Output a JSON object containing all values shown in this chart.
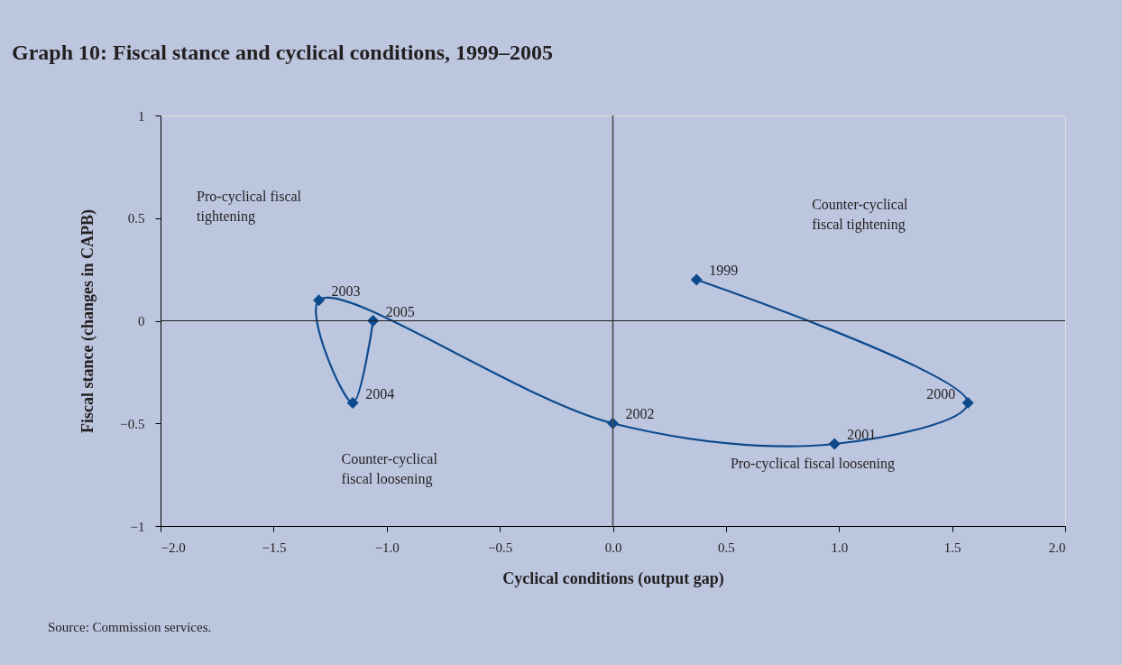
{
  "chart_data": {
    "type": "line",
    "title": "Graph 10:  Fiscal stance and cyclical conditions, 1999–2005",
    "xlabel": "Cyclical conditions (output gap)",
    "ylabel": "Fiscal stance (changes in CAPB)",
    "series": [
      {
        "x": [
          0.37,
          1.57,
          0.98,
          0.0,
          -1.3,
          -1.15,
          -1.06
        ],
        "values": [
          0.2,
          -0.4,
          -0.6,
          -0.5,
          0.1,
          -0.4,
          0.0
        ],
        "color": "#0d4a8c"
      }
    ],
    "marker": "diamond",
    "line_style": "solid",
    "xlim": [
      -2,
      2
    ],
    "ylim": [
      -1,
      1
    ],
    "xticks": [
      {
        "value": -2,
        "label": "−2.0"
      },
      {
        "value": -1.5,
        "label": "−1.5"
      },
      {
        "value": -1,
        "label": "−1.0"
      },
      {
        "value": -0.5,
        "label": "−0.5"
      },
      {
        "value": 0,
        "label": "0.0"
      },
      0.5,
      {
        "value": 1,
        "label": "1.0"
      },
      1.5,
      {
        "value": 2,
        "label": "2.0"
      }
    ],
    "yticks": [
      {
        "value": -1,
        "label": "−1"
      },
      {
        "value": -0.5,
        "label": "−0.5"
      },
      0,
      0.5,
      1
    ],
    "ref_lines": [
      {
        "axis": "x",
        "value": 0,
        "color": "#4a4a4f"
      },
      {
        "axis": "y",
        "value": 0,
        "color": "#231f20"
      }
    ],
    "annotations": [
      "Pro-cyclical fiscal\ntightening",
      "Counter-cyclical\nfiscal tightening",
      "Counter-cyclical\nfiscal loosening",
      "Pro-cyclical fiscal loosening",
      "Source: Commission services.",
      {
        "text": "1999",
        "x": 0.37,
        "y": 0.2
      },
      {
        "text": "2000",
        "x": 1.57,
        "y": -0.4
      },
      {
        "text": "2001",
        "x": 0.98,
        "y": -0.6
      },
      {
        "text": "2002",
        "x": 0.0,
        "y": -0.5
      },
      {
        "text": "2003",
        "x": -1.3,
        "y": 0.1
      },
      {
        "text": "2004",
        "x": -1.15,
        "y": -0.4
      },
      {
        "text": "2005",
        "x": -1.06,
        "y": 0.0
      }
    ],
    "grid": false
  }
}
